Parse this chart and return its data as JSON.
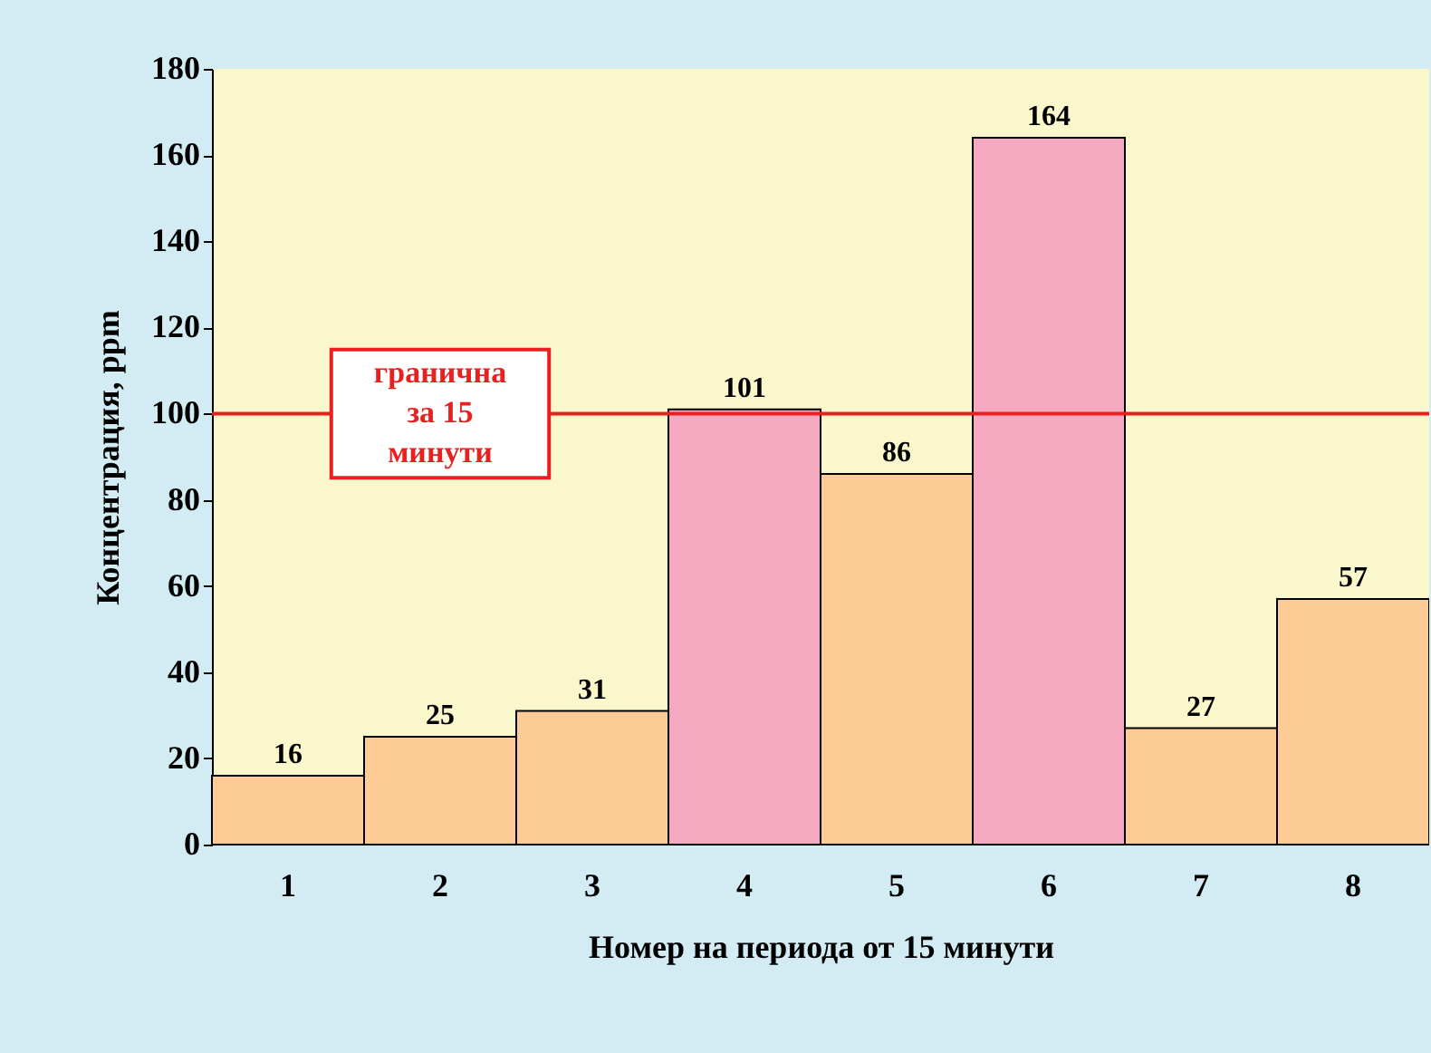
{
  "chart_data": {
    "type": "bar",
    "xlabel": "Номер на периода от 15 минути",
    "ylabel": "Концентрация, ppm",
    "categories": [
      "1",
      "2",
      "3",
      "4",
      "5",
      "6",
      "7",
      "8"
    ],
    "values": [
      16,
      25,
      31,
      101,
      86,
      164,
      27,
      57
    ],
    "colors": [
      "#fccb96",
      "#fccb96",
      "#fccb96",
      "#f4a9c1",
      "#fccb96",
      "#f4a9c1",
      "#fccb96",
      "#fccb96"
    ],
    "data_labels": true,
    "ylim": [
      0,
      180
    ],
    "yticks": [
      0,
      20,
      40,
      60,
      80,
      100,
      120,
      140,
      160,
      180
    ],
    "ref_lines": [
      {
        "axis": "y",
        "value": 100,
        "label": "гранична за 15 минути",
        "color": "#e8201f"
      }
    ],
    "grid": false
  }
}
